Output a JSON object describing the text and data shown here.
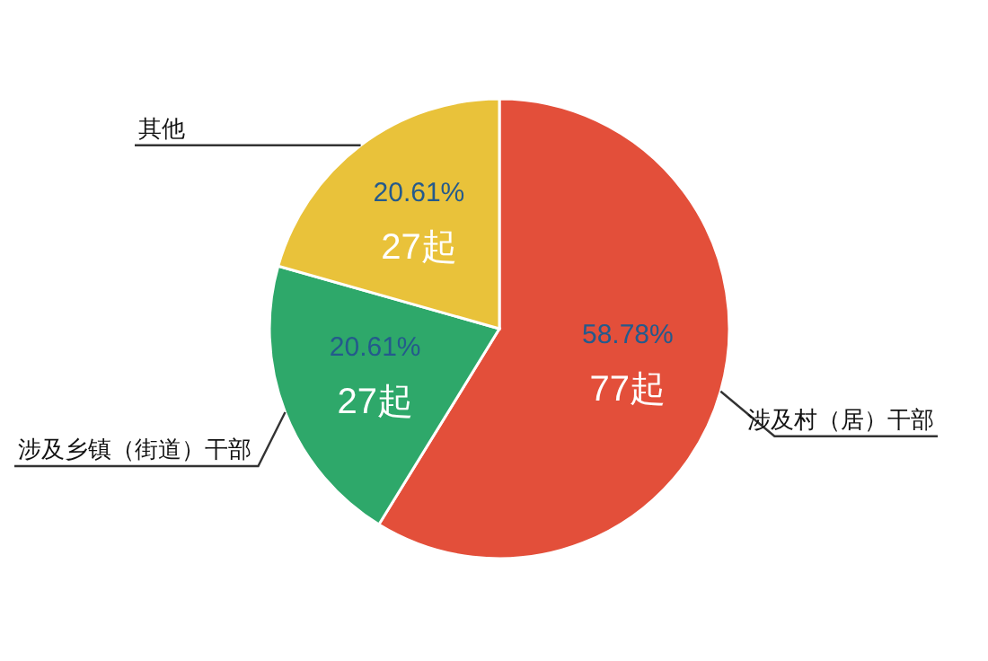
{
  "chart_data": {
    "type": "pie",
    "categories": [
      "涉及村（居）干部",
      "涉及乡镇（街道）干部",
      "其他"
    ],
    "values": [
      77,
      27,
      27
    ],
    "colors": [
      "#e34f3a",
      "#2ea86a",
      "#e9c23a"
    ],
    "value_labels": [
      "58.78%\n77起",
      "20.61%\n27起",
      "20.61%\n27起"
    ]
  }
}
